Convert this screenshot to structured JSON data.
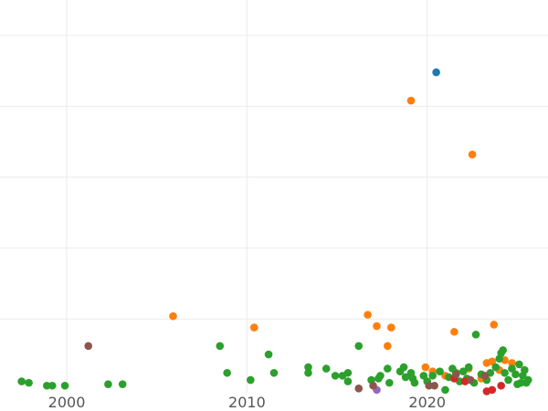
{
  "chart_data": {
    "type": "scatter",
    "title": "",
    "xlabel": "",
    "ylabel": "",
    "xlim": [
      1996.3,
      2026.7
    ],
    "ylim": [
      -0.2,
      27.5
    ],
    "x_ticks": [
      2000,
      2010,
      2020
    ],
    "x_tick_labels": [
      "2000",
      "2010",
      "2020"
    ],
    "y_gridlines": [
      5,
      10,
      15,
      20,
      25
    ],
    "grid": true,
    "legend": "none",
    "series": [
      {
        "color": "#1f77b4",
        "points": [
          [
            2020.5,
            22.4
          ]
        ]
      },
      {
        "color": "#ff7f0e",
        "points": [
          [
            2005.9,
            5.2
          ],
          [
            2010.4,
            4.4
          ],
          [
            2016.7,
            5.3
          ],
          [
            2017.2,
            4.5
          ],
          [
            2017.8,
            3.1
          ],
          [
            2018.0,
            4.4
          ],
          [
            2019.1,
            20.4
          ],
          [
            2019.9,
            1.6
          ],
          [
            2020.3,
            1.3
          ],
          [
            2021.0,
            1.0
          ],
          [
            2021.5,
            4.1
          ],
          [
            2022.3,
            1.5
          ],
          [
            2022.5,
            16.6
          ],
          [
            2023.0,
            0.8
          ],
          [
            2023.3,
            1.9
          ],
          [
            2023.6,
            2.0
          ],
          [
            2023.7,
            4.6
          ],
          [
            2024.0,
            1.4
          ],
          [
            2024.3,
            2.1
          ],
          [
            2024.7,
            1.9
          ]
        ]
      },
      {
        "color": "#2ca02c",
        "points": [
          [
            1997.5,
            0.6
          ],
          [
            1997.9,
            0.5
          ],
          [
            1998.9,
            0.3
          ],
          [
            1999.2,
            0.3
          ],
          [
            1999.9,
            0.3
          ],
          [
            2002.3,
            0.4
          ],
          [
            2003.1,
            0.4
          ],
          [
            2008.5,
            3.1
          ],
          [
            2008.9,
            1.2
          ],
          [
            2010.2,
            0.7
          ],
          [
            2011.2,
            2.5
          ],
          [
            2011.5,
            1.2
          ],
          [
            2013.4,
            1.2
          ],
          [
            2013.4,
            1.6
          ],
          [
            2014.4,
            1.5
          ],
          [
            2014.9,
            1.0
          ],
          [
            2015.3,
            1.0
          ],
          [
            2015.6,
            1.2
          ],
          [
            2015.6,
            0.6
          ],
          [
            2016.2,
            3.1
          ],
          [
            2016.9,
            0.7
          ],
          [
            2017.3,
            0.8
          ],
          [
            2017.4,
            1.0
          ],
          [
            2017.8,
            1.5
          ],
          [
            2017.9,
            0.5
          ],
          [
            2018.5,
            1.3
          ],
          [
            2018.7,
            1.6
          ],
          [
            2018.8,
            0.9
          ],
          [
            2019.1,
            1.2
          ],
          [
            2019.2,
            0.8
          ],
          [
            2019.3,
            0.5
          ],
          [
            2019.8,
            1.0
          ],
          [
            2020.0,
            0.6
          ],
          [
            2020.3,
            1.0
          ],
          [
            2020.7,
            1.3
          ],
          [
            2021.0,
            0.0
          ],
          [
            2021.2,
            0.9
          ],
          [
            2021.4,
            1.5
          ],
          [
            2021.6,
            1.2
          ],
          [
            2021.8,
            0.6
          ],
          [
            2022.0,
            1.3
          ],
          [
            2022.2,
            0.8
          ],
          [
            2022.3,
            1.6
          ],
          [
            2022.6,
            0.5
          ],
          [
            2022.7,
            3.9
          ],
          [
            2023.0,
            1.1
          ],
          [
            2023.3,
            0.7
          ],
          [
            2023.5,
            1.2
          ],
          [
            2023.8,
            1.6
          ],
          [
            2024.0,
            2.2
          ],
          [
            2024.1,
            2.6
          ],
          [
            2024.2,
            2.8
          ],
          [
            2024.3,
            1.2
          ],
          [
            2024.5,
            0.7
          ],
          [
            2024.7,
            1.5
          ],
          [
            2024.9,
            1.1
          ],
          [
            2025.0,
            0.4
          ],
          [
            2025.1,
            1.8
          ],
          [
            2025.2,
            0.5
          ],
          [
            2025.3,
            1.0
          ],
          [
            2025.4,
            1.4
          ],
          [
            2025.5,
            0.5
          ],
          [
            2025.6,
            0.7
          ]
        ]
      },
      {
        "color": "#d62728",
        "points": [
          [
            2021.5,
            0.8
          ],
          [
            2022.1,
            0.6
          ],
          [
            2023.3,
            -0.1
          ],
          [
            2023.6,
            0.0
          ],
          [
            2024.1,
            0.3
          ]
        ]
      },
      {
        "color": "#9467bd",
        "points": [
          [
            2017.2,
            0.0
          ]
        ]
      },
      {
        "color": "#8c564b",
        "points": [
          [
            2001.2,
            3.1
          ],
          [
            2016.2,
            0.1
          ],
          [
            2017.0,
            0.3
          ],
          [
            2020.1,
            0.3
          ],
          [
            2020.4,
            0.3
          ],
          [
            2021.6,
            1.1
          ],
          [
            2022.4,
            0.7
          ],
          [
            2023.2,
            1.0
          ]
        ]
      }
    ]
  }
}
